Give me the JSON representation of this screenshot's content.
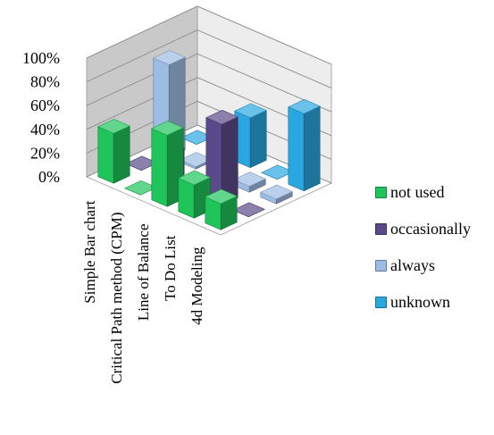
{
  "chart_data": {
    "type": "bar",
    "variant": "3d-column",
    "title": "",
    "xlabel": "",
    "ylabel": "",
    "ylim": [
      0,
      100
    ],
    "y_ticks": [
      "0%",
      "20%",
      "40%",
      "60%",
      "80%",
      "100%"
    ],
    "categories": [
      "Simple Bar chart",
      "Critical Path method (CPM)",
      "Line of Balance",
      "To Do List",
      "4d Modeling"
    ],
    "series": [
      {
        "name": "not used",
        "color": "#1fc45a",
        "values": [
          42,
          0,
          60,
          28,
          22
        ]
      },
      {
        "name": "occasionally",
        "color": "#5b4a8a",
        "values": [
          0,
          22,
          0,
          68,
          0
        ]
      },
      {
        "name": "always",
        "color": "#9dbce3",
        "values": [
          78,
          2,
          0,
          5,
          4
        ]
      },
      {
        "name": "unknown",
        "color": "#2aa7e0",
        "values": [
          0,
          0,
          42,
          0,
          65
        ]
      }
    ],
    "grid": true,
    "legend_position": "right"
  }
}
